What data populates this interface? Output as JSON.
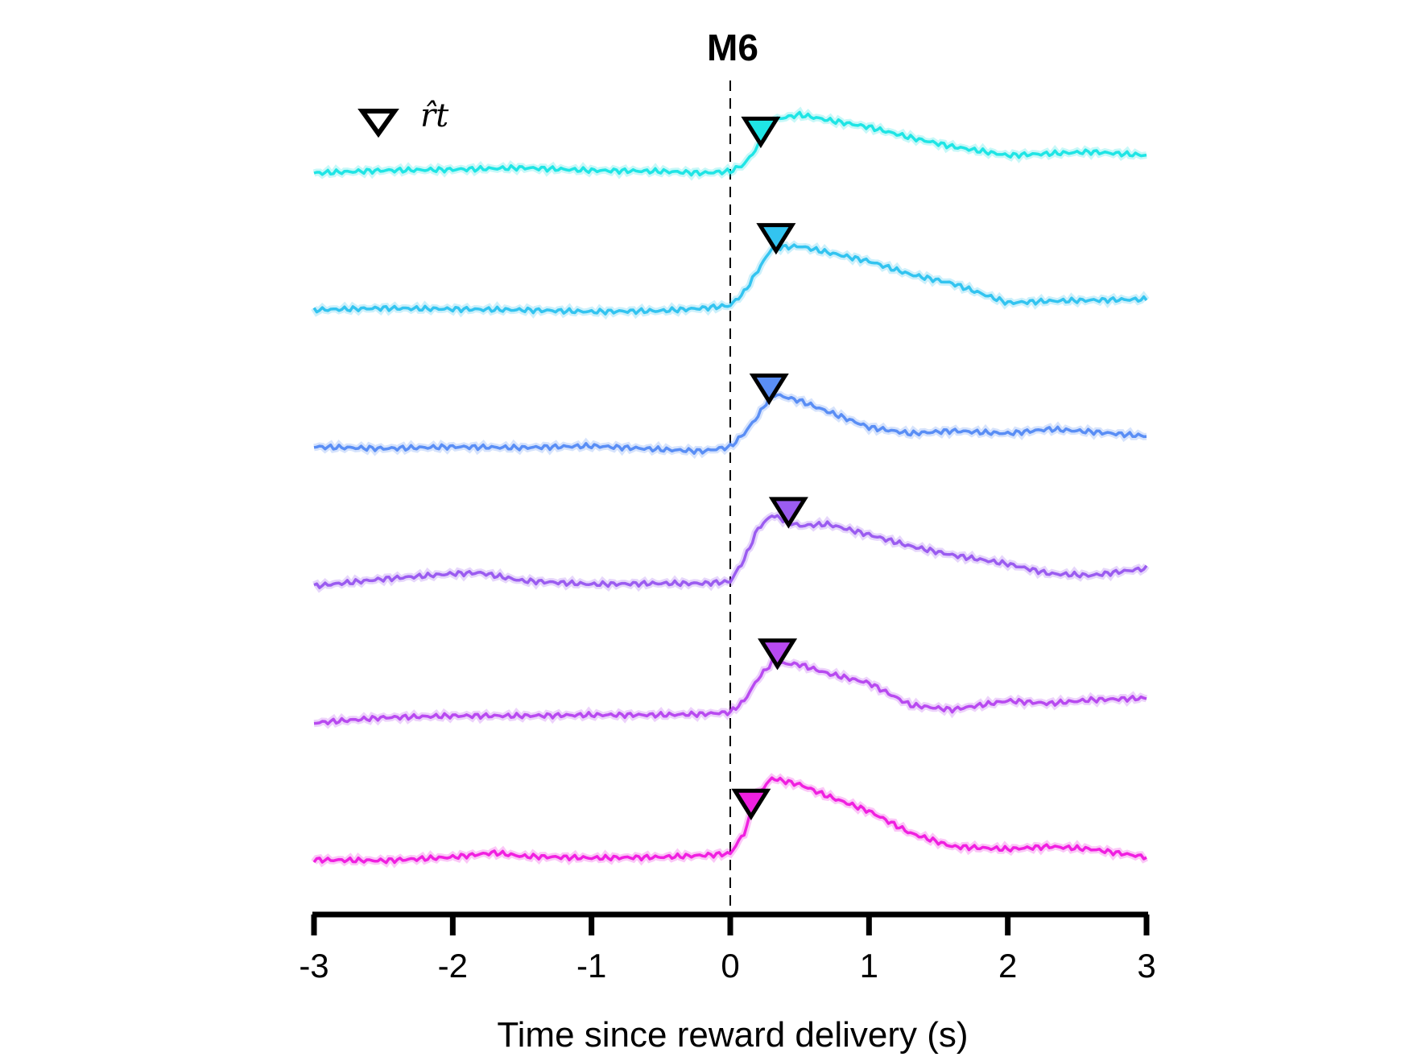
{
  "chart_data": {
    "type": "line",
    "title": "M6",
    "xlabel": "Time since reward delivery (s)",
    "ylabel": "",
    "xlim": [
      -3,
      3
    ],
    "x_ticks": [
      "-3",
      "-2",
      "-1",
      "0",
      "1",
      "2",
      "3"
    ],
    "y_axis_visible": false,
    "grid": false,
    "reference_line": {
      "x": 0,
      "style": "dashed",
      "color": "#000000"
    },
    "legend": {
      "placement": "top-left",
      "marker": "triangle-down",
      "label": "r̂t"
    },
    "series": [
      {
        "color": "#1fe5e5",
        "rt_marker_x": 0.22,
        "x": [
          -3.0,
          -2.5,
          -2.0,
          -1.5,
          -1.0,
          -0.5,
          -0.2,
          0.0,
          0.1,
          0.2,
          0.3,
          0.5,
          0.7,
          1.0,
          1.3,
          1.6,
          2.0,
          2.3,
          2.6,
          3.0
        ],
        "y": [
          0.0,
          0.03,
          0.04,
          0.06,
          0.03,
          0.02,
          0.0,
          0.02,
          0.1,
          0.3,
          0.6,
          0.66,
          0.6,
          0.52,
          0.4,
          0.3,
          0.2,
          0.22,
          0.24,
          0.2
        ]
      },
      {
        "color": "#33c4f0",
        "rt_marker_x": 0.33,
        "x": [
          -3.0,
          -2.5,
          -2.0,
          -1.5,
          -1.0,
          -0.5,
          -0.2,
          0.0,
          0.1,
          0.2,
          0.3,
          0.5,
          0.7,
          1.0,
          1.3,
          1.6,
          2.0,
          2.3,
          2.6,
          3.0
        ],
        "y": [
          0.0,
          0.02,
          0.01,
          0.0,
          -0.02,
          -0.01,
          0.02,
          0.05,
          0.2,
          0.45,
          0.7,
          0.72,
          0.65,
          0.55,
          0.4,
          0.3,
          0.08,
          0.1,
          0.11,
          0.12
        ]
      },
      {
        "color": "#5a8ef5",
        "rt_marker_x": 0.28,
        "x": [
          -3.0,
          -2.5,
          -2.0,
          -1.5,
          -1.0,
          -0.5,
          -0.2,
          0.0,
          0.1,
          0.2,
          0.3,
          0.5,
          0.7,
          1.0,
          1.3,
          1.6,
          2.0,
          2.3,
          2.6,
          3.0
        ],
        "y": [
          0.0,
          -0.02,
          0.0,
          -0.01,
          0.01,
          -0.03,
          -0.05,
          0.0,
          0.15,
          0.35,
          0.6,
          0.52,
          0.4,
          0.22,
          0.15,
          0.18,
          0.15,
          0.2,
          0.17,
          0.12
        ]
      },
      {
        "color": "#9b5cf0",
        "rt_marker_x": 0.42,
        "x": [
          -3.0,
          -2.5,
          -2.0,
          -1.8,
          -1.5,
          -1.0,
          -0.5,
          -0.2,
          0.0,
          0.1,
          0.2,
          0.3,
          0.5,
          0.7,
          1.0,
          1.3,
          1.6,
          2.0,
          2.3,
          2.6,
          3.0
        ],
        "y": [
          0.0,
          0.08,
          0.14,
          0.15,
          0.06,
          0.02,
          0.03,
          0.03,
          0.05,
          0.3,
          0.65,
          0.8,
          0.68,
          0.7,
          0.58,
          0.45,
          0.35,
          0.25,
          0.14,
          0.12,
          0.2
        ]
      },
      {
        "color": "#b84af0",
        "rt_marker_x": 0.34,
        "x": [
          -3.0,
          -2.5,
          -2.0,
          -1.5,
          -1.0,
          -0.5,
          -0.2,
          0.0,
          0.1,
          0.2,
          0.3,
          0.5,
          0.7,
          1.0,
          1.3,
          1.6,
          2.0,
          2.3,
          2.6,
          3.0
        ],
        "y": [
          0.0,
          0.06,
          0.08,
          0.08,
          0.09,
          0.09,
          0.1,
          0.12,
          0.25,
          0.5,
          0.68,
          0.66,
          0.56,
          0.45,
          0.2,
          0.15,
          0.25,
          0.22,
          0.26,
          0.28
        ]
      },
      {
        "color": "#f020e0",
        "rt_marker_x": 0.15,
        "x": [
          -3.0,
          -2.5,
          -2.0,
          -1.7,
          -1.5,
          -1.0,
          -0.5,
          -0.2,
          0.0,
          0.1,
          0.2,
          0.3,
          0.5,
          0.7,
          1.0,
          1.3,
          1.6,
          2.0,
          2.3,
          2.6,
          3.0
        ],
        "y": [
          0.0,
          -0.01,
          0.03,
          0.08,
          0.04,
          0.02,
          0.03,
          0.05,
          0.07,
          0.3,
          0.75,
          0.92,
          0.85,
          0.72,
          0.55,
          0.3,
          0.15,
          0.12,
          0.15,
          0.12,
          0.03
        ]
      }
    ]
  }
}
